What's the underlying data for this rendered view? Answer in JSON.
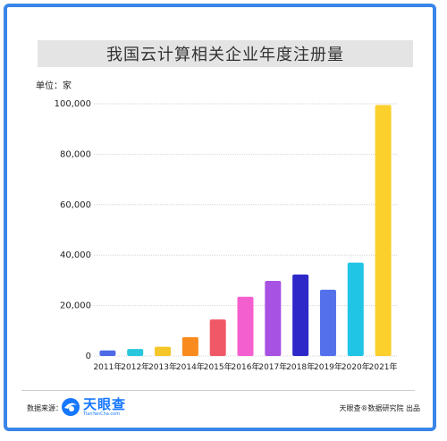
{
  "header": {
    "title": "我国云计算相关企业年度注册量"
  },
  "unit_label": "单位：家",
  "footer": {
    "source_label": "数据来源：",
    "logo_cn": "天眼查",
    "logo_en": "TianYanCha.com",
    "credit": "天眼查®数据研究院 出品"
  },
  "colors": {
    "frame": "#3a86e8",
    "logo": "#1677ff"
  },
  "chart_data": {
    "type": "bar",
    "categories": [
      "2011年",
      "2012年",
      "2013年",
      "2014年",
      "2015年",
      "2016年",
      "2017年",
      "2018年",
      "2019年",
      "2020年",
      "2021年"
    ],
    "values": [
      2200,
      2800,
      3700,
      7500,
      14500,
      23500,
      29800,
      32300,
      26300,
      37000,
      99500
    ],
    "colors": [
      "#4f6ae8",
      "#28c7dd",
      "#f5c628",
      "#f98a1e",
      "#f05868",
      "#f45fd0",
      "#a852e4",
      "#2f28c8",
      "#5470ea",
      "#20c5e5",
      "#fbd02d"
    ],
    "yticks": [
      "0",
      "20,000",
      "40,000",
      "60,000",
      "80,000",
      "100,000"
    ],
    "ylim": [
      0,
      100000
    ],
    "grid": true
  }
}
